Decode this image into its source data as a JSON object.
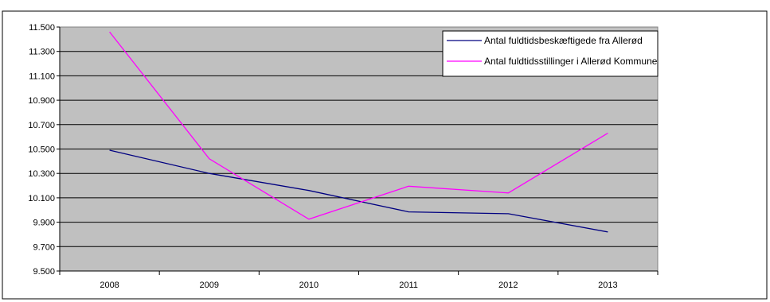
{
  "chart_data": {
    "type": "line",
    "title": "",
    "xlabel": "",
    "ylabel": "",
    "categories": [
      "2008",
      "2009",
      "2010",
      "2011",
      "2012",
      "2013"
    ],
    "ylim": [
      9500,
      11500
    ],
    "y_ticks": [
      9500,
      9700,
      9900,
      10100,
      10300,
      10500,
      10700,
      10900,
      11100,
      11300,
      11500
    ],
    "y_tick_labels": [
      "9.500",
      "9.700",
      "9.900",
      "10.100",
      "10.300",
      "10.500",
      "10.700",
      "10.900",
      "11.100",
      "11.300",
      "11.500"
    ],
    "grid": true,
    "legend_position": "top-right",
    "plot_background": "#c0c0c0",
    "series": [
      {
        "name": "Antal fuldtidsbeskæftigede fra Allerød",
        "color": "#000080",
        "values": [
          10490,
          10300,
          10160,
          9985,
          9970,
          9820
        ]
      },
      {
        "name": "Antal fuldtidsstillinger i Allerød Kommune",
        "color": "#ff00ff",
        "values": [
          11460,
          10420,
          9925,
          10195,
          10140,
          10630
        ]
      }
    ]
  }
}
